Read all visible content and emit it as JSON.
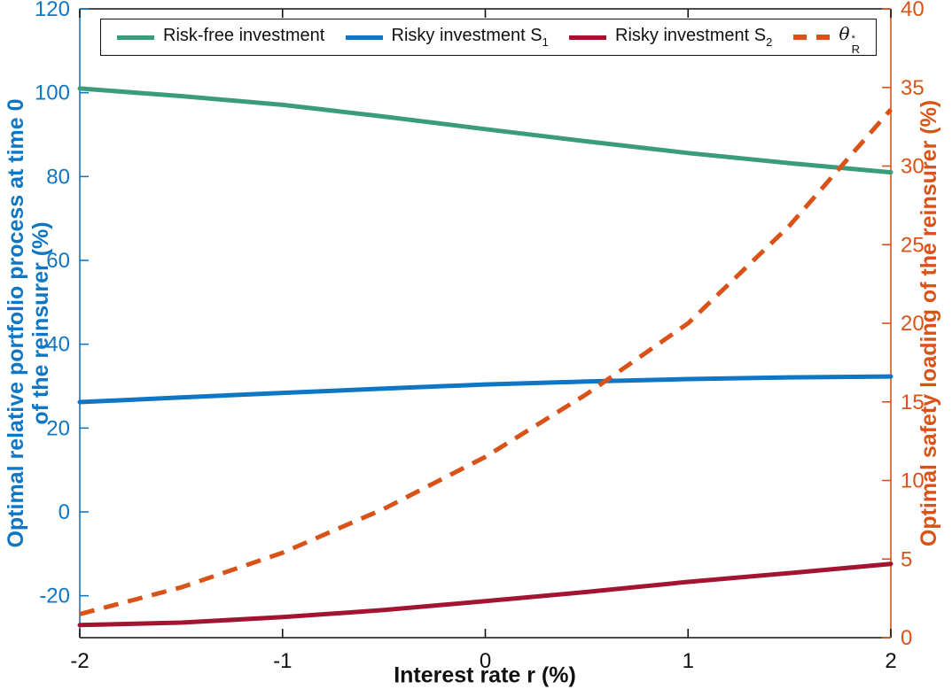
{
  "legend": {
    "items": [
      {
        "id": "risk-free",
        "label": "Risk-free investment",
        "sup": "",
        "sub": ""
      },
      {
        "id": "risky-s1",
        "label": "Risky investment S",
        "sup": "",
        "sub": "1"
      },
      {
        "id": "risky-s2",
        "label": "Risky investment S",
        "sup": "",
        "sub": "2"
      },
      {
        "id": "theta-r",
        "label": "θ",
        "sup": "*",
        "sub": "R"
      }
    ]
  },
  "chart_data": {
    "type": "line",
    "title": "",
    "xlabel": "Interest rate r (%)",
    "x": [
      -2,
      -1.5,
      -1,
      -0.5,
      0,
      0.5,
      1,
      1.5,
      2
    ],
    "x_ticks": [
      -2,
      -1,
      0,
      1,
      2
    ],
    "x_range": [
      -2,
      2
    ],
    "grid": false,
    "legend_position": "north-horizontal-boxed",
    "left_axis": {
      "label_line1": "Optimal relative portfolio process at time 0",
      "label_line2": "of the reinsurer (%)",
      "ticks": [
        -20,
        0,
        20,
        40,
        60,
        80,
        100,
        120
      ],
      "range": [
        -30,
        120
      ],
      "color": "#0F76C4"
    },
    "right_axis": {
      "label": "Optimal safety loading of the reinsurer (%)",
      "ticks": [
        0,
        5,
        10,
        15,
        20,
        25,
        30,
        35,
        40
      ],
      "range": [
        0,
        40
      ],
      "color": "#D95319"
    },
    "axis_black": "#111111",
    "series": [
      {
        "id": "risk-free",
        "name": "Risk-free investment",
        "axis": "left",
        "style": "solid",
        "color": "#3A9C7A",
        "values": [
          101.0,
          99.2,
          97.1,
          94.3,
          91.3,
          88.4,
          85.6,
          83.2,
          81.0
        ]
      },
      {
        "id": "risky-s1",
        "name": "Risky investment S1",
        "axis": "left",
        "style": "solid",
        "color": "#0F76C4",
        "values": [
          26.2,
          27.3,
          28.4,
          29.4,
          30.4,
          31.1,
          31.7,
          32.1,
          32.3
        ]
      },
      {
        "id": "risky-s2",
        "name": "Risky investment S2",
        "axis": "left",
        "style": "solid",
        "color": "#A2142F",
        "values": [
          -27.0,
          -26.4,
          -25.1,
          -23.4,
          -21.3,
          -19.1,
          -16.7,
          -14.6,
          -12.4
        ]
      },
      {
        "id": "theta-r",
        "name": "θ*R (optimal safety loading)",
        "axis": "right",
        "style": "dashed",
        "color": "#D95319",
        "values": [
          1.5,
          3.2,
          5.4,
          8.2,
          11.5,
          15.5,
          20.0,
          26.2,
          33.6
        ]
      }
    ]
  }
}
